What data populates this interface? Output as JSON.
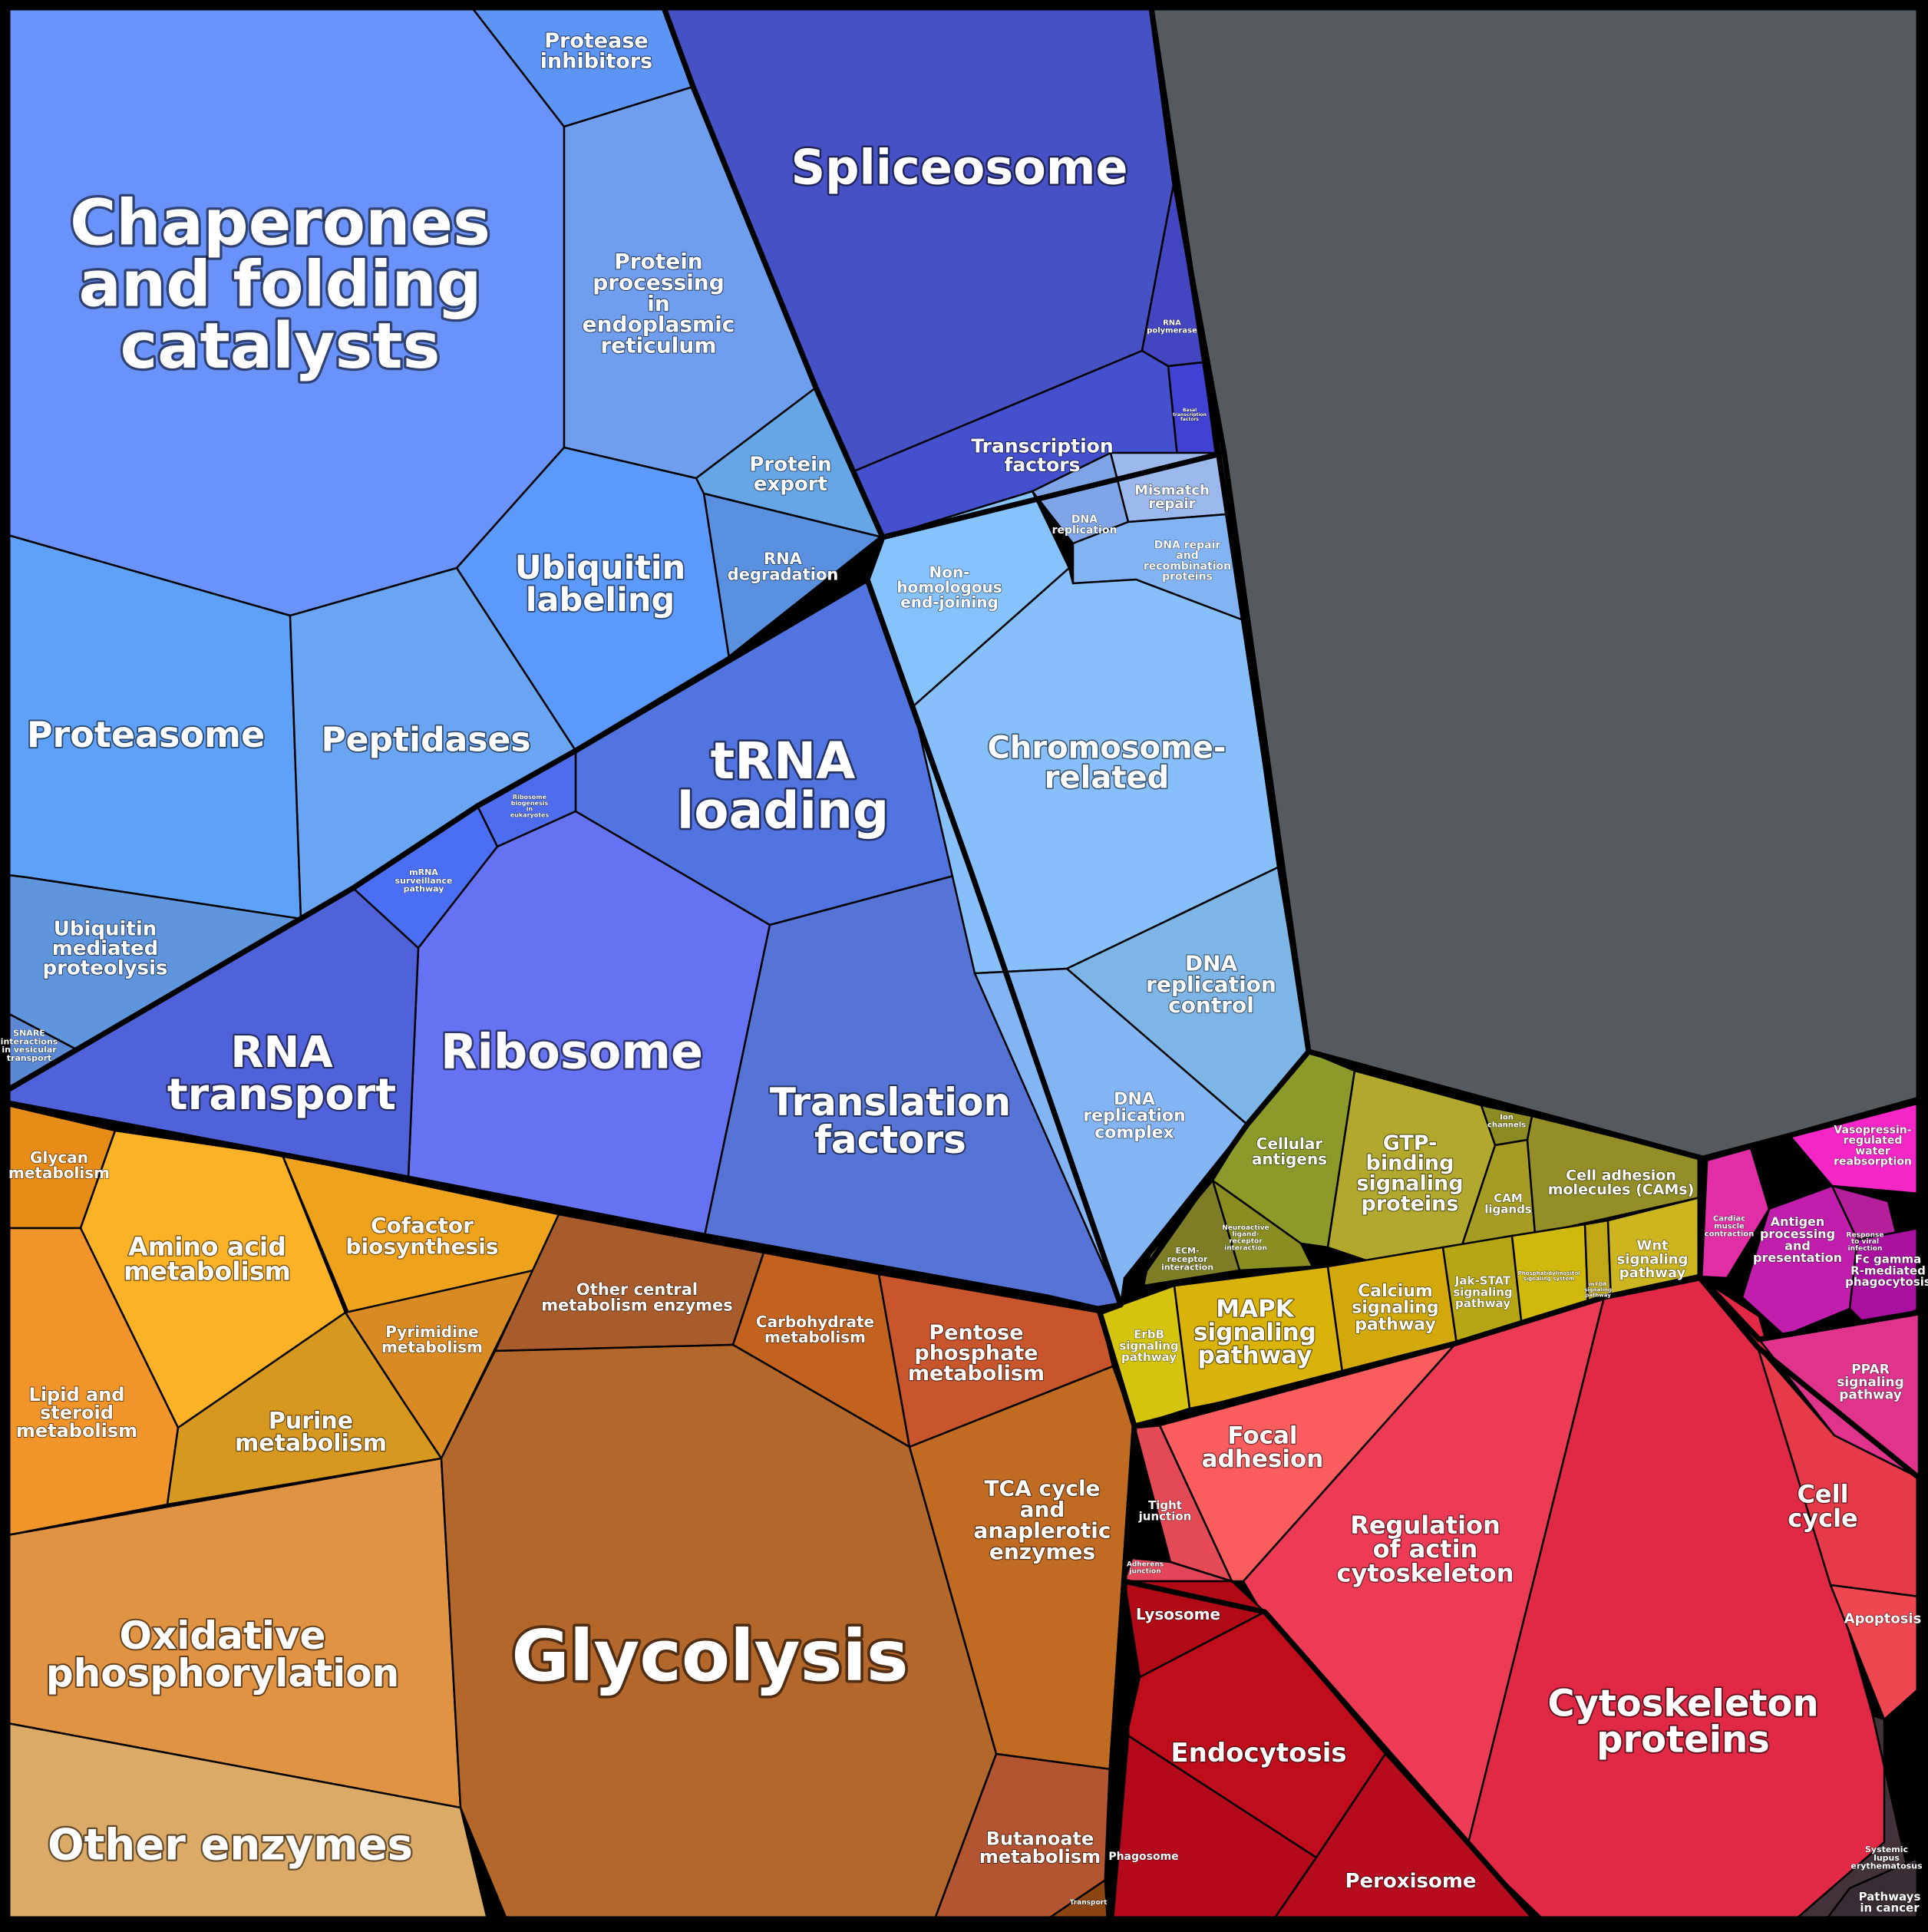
{
  "diagram": {
    "type": "voronoi-treemap",
    "group_colors": {
      "genetic_info": "#4651c8",
      "protein_handling": "#6892fb",
      "replication_repair": "#86befa",
      "metabolism": "#b4662a",
      "signaling": "#d6b400",
      "cellular_processes": "#e4283f",
      "organismal_systems": "#c22ab4",
      "unclassified": "#555a5e"
    },
    "cells": [
      {
        "id": "chaperones",
        "label": "Chaperones\nand folding\ncatalysts",
        "color": "#6992fb"
      },
      {
        "id": "protease-inhibitors",
        "label": "Protease\ninhibitors",
        "color": "#5d95f5"
      },
      {
        "id": "protein-processing-er",
        "label": "Protein\nprocessing\nin\nendoplasmic\nreticulum",
        "color": "#6f9eee"
      },
      {
        "id": "protein-export",
        "label": "Protein\nexport",
        "color": "#66a6e6"
      },
      {
        "id": "rna-degradation",
        "label": "RNA\ndegradation",
        "color": "#5990e0"
      },
      {
        "id": "ubiquitin-labeling",
        "label": "Ubiquitin\nlabeling",
        "color": "#5b99fa"
      },
      {
        "id": "proteasome",
        "label": "Proteasome",
        "color": "#5da2f8"
      },
      {
        "id": "peptidases",
        "label": "Peptidases",
        "color": "#69a5f2"
      },
      {
        "id": "ubiquitin-proteolysis",
        "label": "Ubiquitin\nmediated\nproteolysis",
        "color": "#5f95dd"
      },
      {
        "id": "snare",
        "label": "SNARE\ninteractions\nin vesicular\ntransport",
        "color": "#5a88d4"
      },
      {
        "id": "spliceosome",
        "label": "Spliceosome",
        "color": "#4651c6"
      },
      {
        "id": "rna-polymerase",
        "label": "RNA\npolymerase",
        "color": "#4346c0"
      },
      {
        "id": "basal-tf",
        "label": "Basal\ntranscription\nfactors",
        "color": "#4141d4"
      },
      {
        "id": "transcription-factors",
        "label": "Transcription\nfactors",
        "color": "#4450cd"
      },
      {
        "id": "trna-loading",
        "label": "tRNA\nloading",
        "color": "#5274e0"
      },
      {
        "id": "ribosome-biogenesis",
        "label": "Ribosome\nbiogenesis\nin\neukaryotes",
        "color": "#4d6cee"
      },
      {
        "id": "mrna-surveillance",
        "label": "mRNA\nsurveillance\npathway",
        "color": "#4a6ff5"
      },
      {
        "id": "ribosome",
        "label": "Ribosome",
        "color": "#6573f3"
      },
      {
        "id": "rna-transport",
        "label": "RNA\ntransport",
        "color": "#5062d9"
      },
      {
        "id": "translation-factors",
        "label": "Translation\nfactors",
        "color": "#5574d6"
      },
      {
        "id": "nhej",
        "label": "Non-\nhomologous\nend-joining",
        "color": "#86c2fb"
      },
      {
        "id": "dna-replication",
        "label": "DNA\nreplication",
        "color": "#7fa5e8"
      },
      {
        "id": "mismatch-repair",
        "label": "Mismatch\nrepair",
        "color": "#9cb9ee"
      },
      {
        "id": "dna-repair",
        "label": "DNA repair\nand\nrecombination\nproteins",
        "color": "#82b3f2"
      },
      {
        "id": "chromosome",
        "label": "Chromosome-\nrelated",
        "color": "#86bffa"
      },
      {
        "id": "dna-rep-control",
        "label": "DNA\nreplication\ncontrol",
        "color": "#7cb5e6"
      },
      {
        "id": "dna-rep-complex",
        "label": "DNA\nreplication\ncomplex",
        "color": "#83b4f4"
      },
      {
        "id": "glycan",
        "label": "Glycan\nmetabolism",
        "color": "#e78c16"
      },
      {
        "id": "amino-acid",
        "label": "Amino acid\nmetabolism",
        "color": "#fbb226"
      },
      {
        "id": "cofactor",
        "label": "Cofactor\nbiosynthesis",
        "color": "#efa21c"
      },
      {
        "id": "lipid",
        "label": "Lipid and\nsteroid\nmetabolism",
        "color": "#f1952a"
      },
      {
        "id": "pyrimidine",
        "label": "Pyrimidine\nmetabolism",
        "color": "#d98a22"
      },
      {
        "id": "purine",
        "label": "Purine\nmetabolism",
        "color": "#d6981f"
      },
      {
        "id": "oxphos",
        "label": "Oxidative\nphosphorylation",
        "color": "#e09342"
      },
      {
        "id": "other-enzymes",
        "label": "Other enzymes",
        "color": "#dbaa66"
      },
      {
        "id": "other-central",
        "label": "Other central\nmetabolism enzymes",
        "color": "#a85b2b"
      },
      {
        "id": "carbohydrate",
        "label": "Carbohydrate\nmetabolism",
        "color": "#c2621e"
      },
      {
        "id": "pentose",
        "label": "Pentose\nphosphate\nmetabolism",
        "color": "#c9552c"
      },
      {
        "id": "glycolysis",
        "label": "Glycolysis",
        "color": "#b3672a"
      },
      {
        "id": "tca",
        "label": "TCA cycle\nand\nanaplerotic\nenzymes",
        "color": "#c06a22"
      },
      {
        "id": "butanoate",
        "label": "Butanoate\nmetabolism",
        "color": "#b45532"
      },
      {
        "id": "transport",
        "label": "Transport",
        "color": "#8c4410"
      },
      {
        "id": "cellular-antigens",
        "label": "Cellular\nantigens",
        "color": "#8b9a28"
      },
      {
        "id": "gtp-binding",
        "label": "GTP-\nbinding\nsignaling\nproteins",
        "color": "#b1a82d"
      },
      {
        "id": "ion-channels",
        "label": "Ion\nchannels",
        "color": "#8c8b21"
      },
      {
        "id": "cam-ligands",
        "label": "CAM\nligands",
        "color": "#a69b23"
      },
      {
        "id": "cell-adhesion",
        "label": "Cell adhesion\nmolecules (CAMs)",
        "color": "#938e25"
      },
      {
        "id": "neuro-ligand",
        "label": "Neuroactive\nligand-\nreceptor\ninteraction",
        "color": "#8a8d1f"
      },
      {
        "id": "ecm-receptor",
        "label": "ECM-\nreceptor\ninteraction",
        "color": "#7d7d26"
      },
      {
        "id": "erbb",
        "label": "ErbB\nsignaling\npathway",
        "color": "#d5c40d"
      },
      {
        "id": "mapk",
        "label": "MAPK\nsignaling\npathway",
        "color": "#d9b20a"
      },
      {
        "id": "calcium",
        "label": "Calcium\nsignaling\npathway",
        "color": "#d3a80a"
      },
      {
        "id": "jak-stat",
        "label": "Jak-STAT\nsignaling\npathway",
        "color": "#b6a614"
      },
      {
        "id": "phosphatidyl",
        "label": "Phosphatidylinositol\nsignaling system",
        "color": "#d0b80c"
      },
      {
        "id": "mtor",
        "label": "mTOR\nsignaling\npathway",
        "color": "#bfa715"
      },
      {
        "id": "wnt",
        "label": "Wnt\nsignaling\npathway",
        "color": "#cdb51f"
      },
      {
        "id": "focal-adhesion",
        "label": "Focal\nadhesion",
        "color": "#fb5c5e"
      },
      {
        "id": "tight-junction",
        "label": "Tight\njunction",
        "color": "#e34a56"
      },
      {
        "id": "adherens",
        "label": "Adherens\njunction",
        "color": "#e3445a"
      },
      {
        "id": "regulation-actin",
        "label": "Regulation\nof actin\ncytoskeleton",
        "color": "#ee3b55"
      },
      {
        "id": "cytoskeleton",
        "label": "Cytoskeleton\nproteins",
        "color": "#e12845"
      },
      {
        "id": "cell-cycle",
        "label": "Cell\ncycle",
        "color": "#e63a48"
      },
      {
        "id": "apoptosis",
        "label": "Apoptosis",
        "color": "#ef4750"
      },
      {
        "id": "lysosome",
        "label": "Lysosome",
        "color": "#b10a16"
      },
      {
        "id": "endocytosis",
        "label": "Endocytosis",
        "color": "#c00d1c"
      },
      {
        "id": "phagosome",
        "label": "Phagosome",
        "color": "#b3091a"
      },
      {
        "id": "peroxisome",
        "label": "Peroxisome",
        "color": "#b70b1e"
      },
      {
        "id": "vasopressin",
        "label": "Vasopressin-\nregulated\nwater\nreabsorption",
        "color": "#f526c6"
      },
      {
        "id": "cardiac",
        "label": "Cardiac\nmuscle\ncontraction",
        "color": "#e12ea6"
      },
      {
        "id": "antigen",
        "label": "Antigen\nprocessing\nand\npresentation",
        "color": "#c21eae"
      },
      {
        "id": "response-viral",
        "label": "Response\nto viral\ninfection",
        "color": "#b51f9c"
      },
      {
        "id": "fc-gamma",
        "label": "Fc gamma\nR-mediated\nphagocytosis",
        "color": "#a910a0"
      },
      {
        "id": "ppar",
        "label": "PPAR\nsignaling\npathway",
        "color": "#e0338c"
      },
      {
        "id": "sle",
        "label": "Systemic\nlupus\nerythematosus",
        "color": "#423239"
      },
      {
        "id": "pathways-cancer",
        "label": "Pathways\nin cancer",
        "color": "#3a2c35"
      },
      {
        "id": "unclassified",
        "label": "",
        "color": "#555a5e"
      }
    ]
  }
}
